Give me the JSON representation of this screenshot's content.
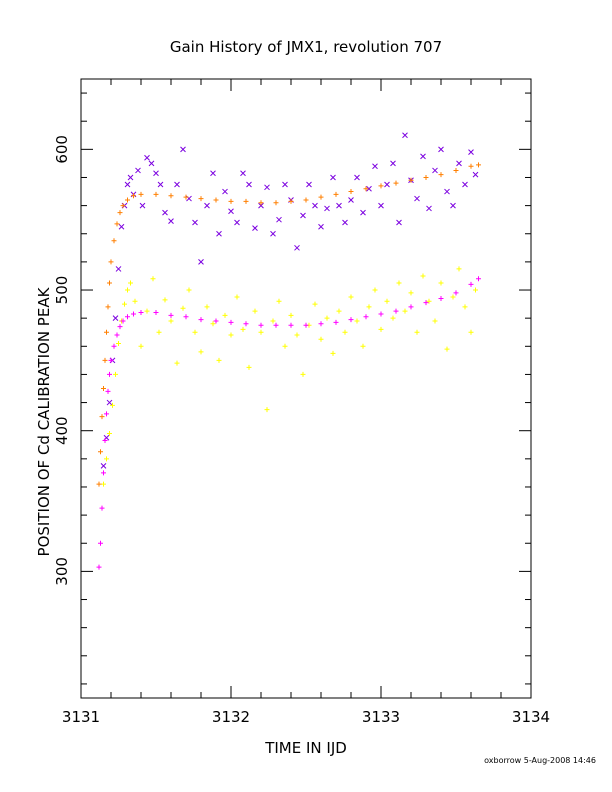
{
  "chart_data": {
    "type": "scatter",
    "title": "Gain History of JMX1, revolution 707",
    "xlabel": "TIME IN IJD",
    "ylabel": "POSITION OF Cd CALIBRATION PEAK",
    "xlim": [
      3131,
      3134
    ],
    "ylim": [
      210,
      650
    ],
    "xticks": [
      3131,
      3132,
      3133,
      3134
    ],
    "yticks": [
      300,
      400,
      500,
      600
    ],
    "grid": false,
    "series": [
      {
        "color": "#7b00e0",
        "marker": "x",
        "description_points": "scattered peak positions, upper group",
        "points": [
          [
            3131.15,
            375
          ],
          [
            3131.17,
            395
          ],
          [
            3131.19,
            420
          ],
          [
            3131.21,
            450
          ],
          [
            3131.23,
            480
          ],
          [
            3131.25,
            515
          ],
          [
            3131.27,
            545
          ],
          [
            3131.29,
            560
          ],
          [
            3131.31,
            575
          ],
          [
            3131.33,
            580
          ],
          [
            3131.35,
            568
          ],
          [
            3131.38,
            585
          ],
          [
            3131.41,
            560
          ],
          [
            3131.44,
            594
          ],
          [
            3131.47,
            590
          ],
          [
            3131.5,
            583
          ],
          [
            3131.53,
            575
          ],
          [
            3131.56,
            555
          ],
          [
            3131.6,
            549
          ],
          [
            3131.64,
            575
          ],
          [
            3131.68,
            600
          ],
          [
            3131.72,
            565
          ],
          [
            3131.76,
            548
          ],
          [
            3131.8,
            520
          ],
          [
            3131.84,
            560
          ],
          [
            3131.88,
            583
          ],
          [
            3131.92,
            540
          ],
          [
            3131.96,
            570
          ],
          [
            3132.0,
            556
          ],
          [
            3132.04,
            548
          ],
          [
            3132.08,
            583
          ],
          [
            3132.12,
            575
          ],
          [
            3132.16,
            544
          ],
          [
            3132.2,
            560
          ],
          [
            3132.24,
            573
          ],
          [
            3132.28,
            540
          ],
          [
            3132.32,
            550
          ],
          [
            3132.36,
            575
          ],
          [
            3132.4,
            564
          ],
          [
            3132.44,
            530
          ],
          [
            3132.48,
            553
          ],
          [
            3132.52,
            575
          ],
          [
            3132.56,
            560
          ],
          [
            3132.6,
            545
          ],
          [
            3132.64,
            558
          ],
          [
            3132.68,
            580
          ],
          [
            3132.72,
            560
          ],
          [
            3132.76,
            548
          ],
          [
            3132.8,
            564
          ],
          [
            3132.84,
            580
          ],
          [
            3132.88,
            555
          ],
          [
            3132.92,
            572
          ],
          [
            3132.96,
            588
          ],
          [
            3133.0,
            560
          ],
          [
            3133.04,
            575
          ],
          [
            3133.08,
            590
          ],
          [
            3133.12,
            548
          ],
          [
            3133.16,
            610
          ],
          [
            3133.2,
            578
          ],
          [
            3133.24,
            565
          ],
          [
            3133.28,
            595
          ],
          [
            3133.32,
            558
          ],
          [
            3133.36,
            585
          ],
          [
            3133.4,
            600
          ],
          [
            3133.44,
            570
          ],
          [
            3133.48,
            560
          ],
          [
            3133.52,
            590
          ],
          [
            3133.56,
            575
          ],
          [
            3133.6,
            598
          ],
          [
            3133.63,
            582
          ]
        ]
      },
      {
        "color": "#ffff00",
        "marker": "+",
        "points": [
          [
            3131.15,
            362
          ],
          [
            3131.17,
            380
          ],
          [
            3131.19,
            398
          ],
          [
            3131.21,
            418
          ],
          [
            3131.23,
            440
          ],
          [
            3131.25,
            462
          ],
          [
            3131.27,
            478
          ],
          [
            3131.29,
            490
          ],
          [
            3131.31,
            500
          ],
          [
            3131.33,
            505
          ],
          [
            3131.36,
            492
          ],
          [
            3131.4,
            460
          ],
          [
            3131.44,
            485
          ],
          [
            3131.48,
            508
          ],
          [
            3131.52,
            470
          ],
          [
            3131.56,
            493
          ],
          [
            3131.6,
            478
          ],
          [
            3131.64,
            448
          ],
          [
            3131.68,
            487
          ],
          [
            3131.72,
            500
          ],
          [
            3131.76,
            470
          ],
          [
            3131.8,
            456
          ],
          [
            3131.84,
            488
          ],
          [
            3131.88,
            476
          ],
          [
            3131.92,
            450
          ],
          [
            3131.96,
            482
          ],
          [
            3132.0,
            468
          ],
          [
            3132.04,
            495
          ],
          [
            3132.08,
            472
          ],
          [
            3132.12,
            445
          ],
          [
            3132.16,
            485
          ],
          [
            3132.2,
            470
          ],
          [
            3132.24,
            415
          ],
          [
            3132.28,
            478
          ],
          [
            3132.32,
            492
          ],
          [
            3132.36,
            460
          ],
          [
            3132.4,
            482
          ],
          [
            3132.44,
            468
          ],
          [
            3132.48,
            440
          ],
          [
            3132.52,
            475
          ],
          [
            3132.56,
            490
          ],
          [
            3132.6,
            465
          ],
          [
            3132.64,
            480
          ],
          [
            3132.68,
            455
          ],
          [
            3132.72,
            485
          ],
          [
            3132.76,
            470
          ],
          [
            3132.8,
            495
          ],
          [
            3132.84,
            478
          ],
          [
            3132.88,
            460
          ],
          [
            3132.92,
            488
          ],
          [
            3132.96,
            500
          ],
          [
            3133.0,
            472
          ],
          [
            3133.04,
            492
          ],
          [
            3133.08,
            480
          ],
          [
            3133.12,
            505
          ],
          [
            3133.16,
            485
          ],
          [
            3133.2,
            498
          ],
          [
            3133.24,
            470
          ],
          [
            3133.28,
            510
          ],
          [
            3133.32,
            492
          ],
          [
            3133.36,
            478
          ],
          [
            3133.4,
            505
          ],
          [
            3133.44,
            458
          ],
          [
            3133.48,
            495
          ],
          [
            3133.52,
            515
          ],
          [
            3133.56,
            488
          ],
          [
            3133.6,
            470
          ],
          [
            3133.63,
            500
          ]
        ]
      },
      {
        "color": "#ff7f00",
        "marker": "+",
        "points": [
          [
            3131.12,
            362
          ],
          [
            3131.13,
            385
          ],
          [
            3131.14,
            410
          ],
          [
            3131.15,
            430
          ],
          [
            3131.16,
            450
          ],
          [
            3131.17,
            470
          ],
          [
            3131.18,
            488
          ],
          [
            3131.19,
            505
          ],
          [
            3131.2,
            520
          ],
          [
            3131.22,
            535
          ],
          [
            3131.24,
            547
          ],
          [
            3131.26,
            555
          ],
          [
            3131.28,
            560
          ],
          [
            3131.31,
            564
          ],
          [
            3131.35,
            567
          ],
          [
            3131.4,
            568
          ],
          [
            3131.5,
            568
          ],
          [
            3131.6,
            567
          ],
          [
            3131.7,
            566
          ],
          [
            3131.8,
            565
          ],
          [
            3131.9,
            564
          ],
          [
            3132.0,
            563
          ],
          [
            3132.1,
            563
          ],
          [
            3132.2,
            562
          ],
          [
            3132.3,
            562
          ],
          [
            3132.4,
            563
          ],
          [
            3132.5,
            564
          ],
          [
            3132.6,
            566
          ],
          [
            3132.7,
            568
          ],
          [
            3132.8,
            570
          ],
          [
            3132.9,
            572
          ],
          [
            3133.0,
            574
          ],
          [
            3133.1,
            576
          ],
          [
            3133.2,
            578
          ],
          [
            3133.3,
            580
          ],
          [
            3133.4,
            582
          ],
          [
            3133.5,
            585
          ],
          [
            3133.6,
            588
          ],
          [
            3133.65,
            589
          ]
        ]
      },
      {
        "color": "#ff00ff",
        "marker": "+",
        "points": [
          [
            3131.12,
            303
          ],
          [
            3131.13,
            320
          ],
          [
            3131.14,
            345
          ],
          [
            3131.15,
            370
          ],
          [
            3131.16,
            393
          ],
          [
            3131.17,
            412
          ],
          [
            3131.18,
            428
          ],
          [
            3131.19,
            440
          ],
          [
            3131.2,
            450
          ],
          [
            3131.22,
            460
          ],
          [
            3131.24,
            468
          ],
          [
            3131.26,
            474
          ],
          [
            3131.28,
            478
          ],
          [
            3131.31,
            481
          ],
          [
            3131.35,
            483
          ],
          [
            3131.4,
            484
          ],
          [
            3131.5,
            484
          ],
          [
            3131.6,
            482
          ],
          [
            3131.7,
            481
          ],
          [
            3131.8,
            479
          ],
          [
            3131.9,
            478
          ],
          [
            3132.0,
            477
          ],
          [
            3132.1,
            476
          ],
          [
            3132.2,
            475
          ],
          [
            3132.3,
            475
          ],
          [
            3132.4,
            475
          ],
          [
            3132.5,
            475
          ],
          [
            3132.6,
            476
          ],
          [
            3132.7,
            477
          ],
          [
            3132.8,
            479
          ],
          [
            3132.9,
            481
          ],
          [
            3133.0,
            483
          ],
          [
            3133.1,
            485
          ],
          [
            3133.2,
            488
          ],
          [
            3133.3,
            491
          ],
          [
            3133.4,
            494
          ],
          [
            3133.5,
            498
          ],
          [
            3133.6,
            504
          ],
          [
            3133.65,
            508
          ]
        ]
      }
    ]
  },
  "footer": "oxborrow  5-Aug-2008 14:46"
}
